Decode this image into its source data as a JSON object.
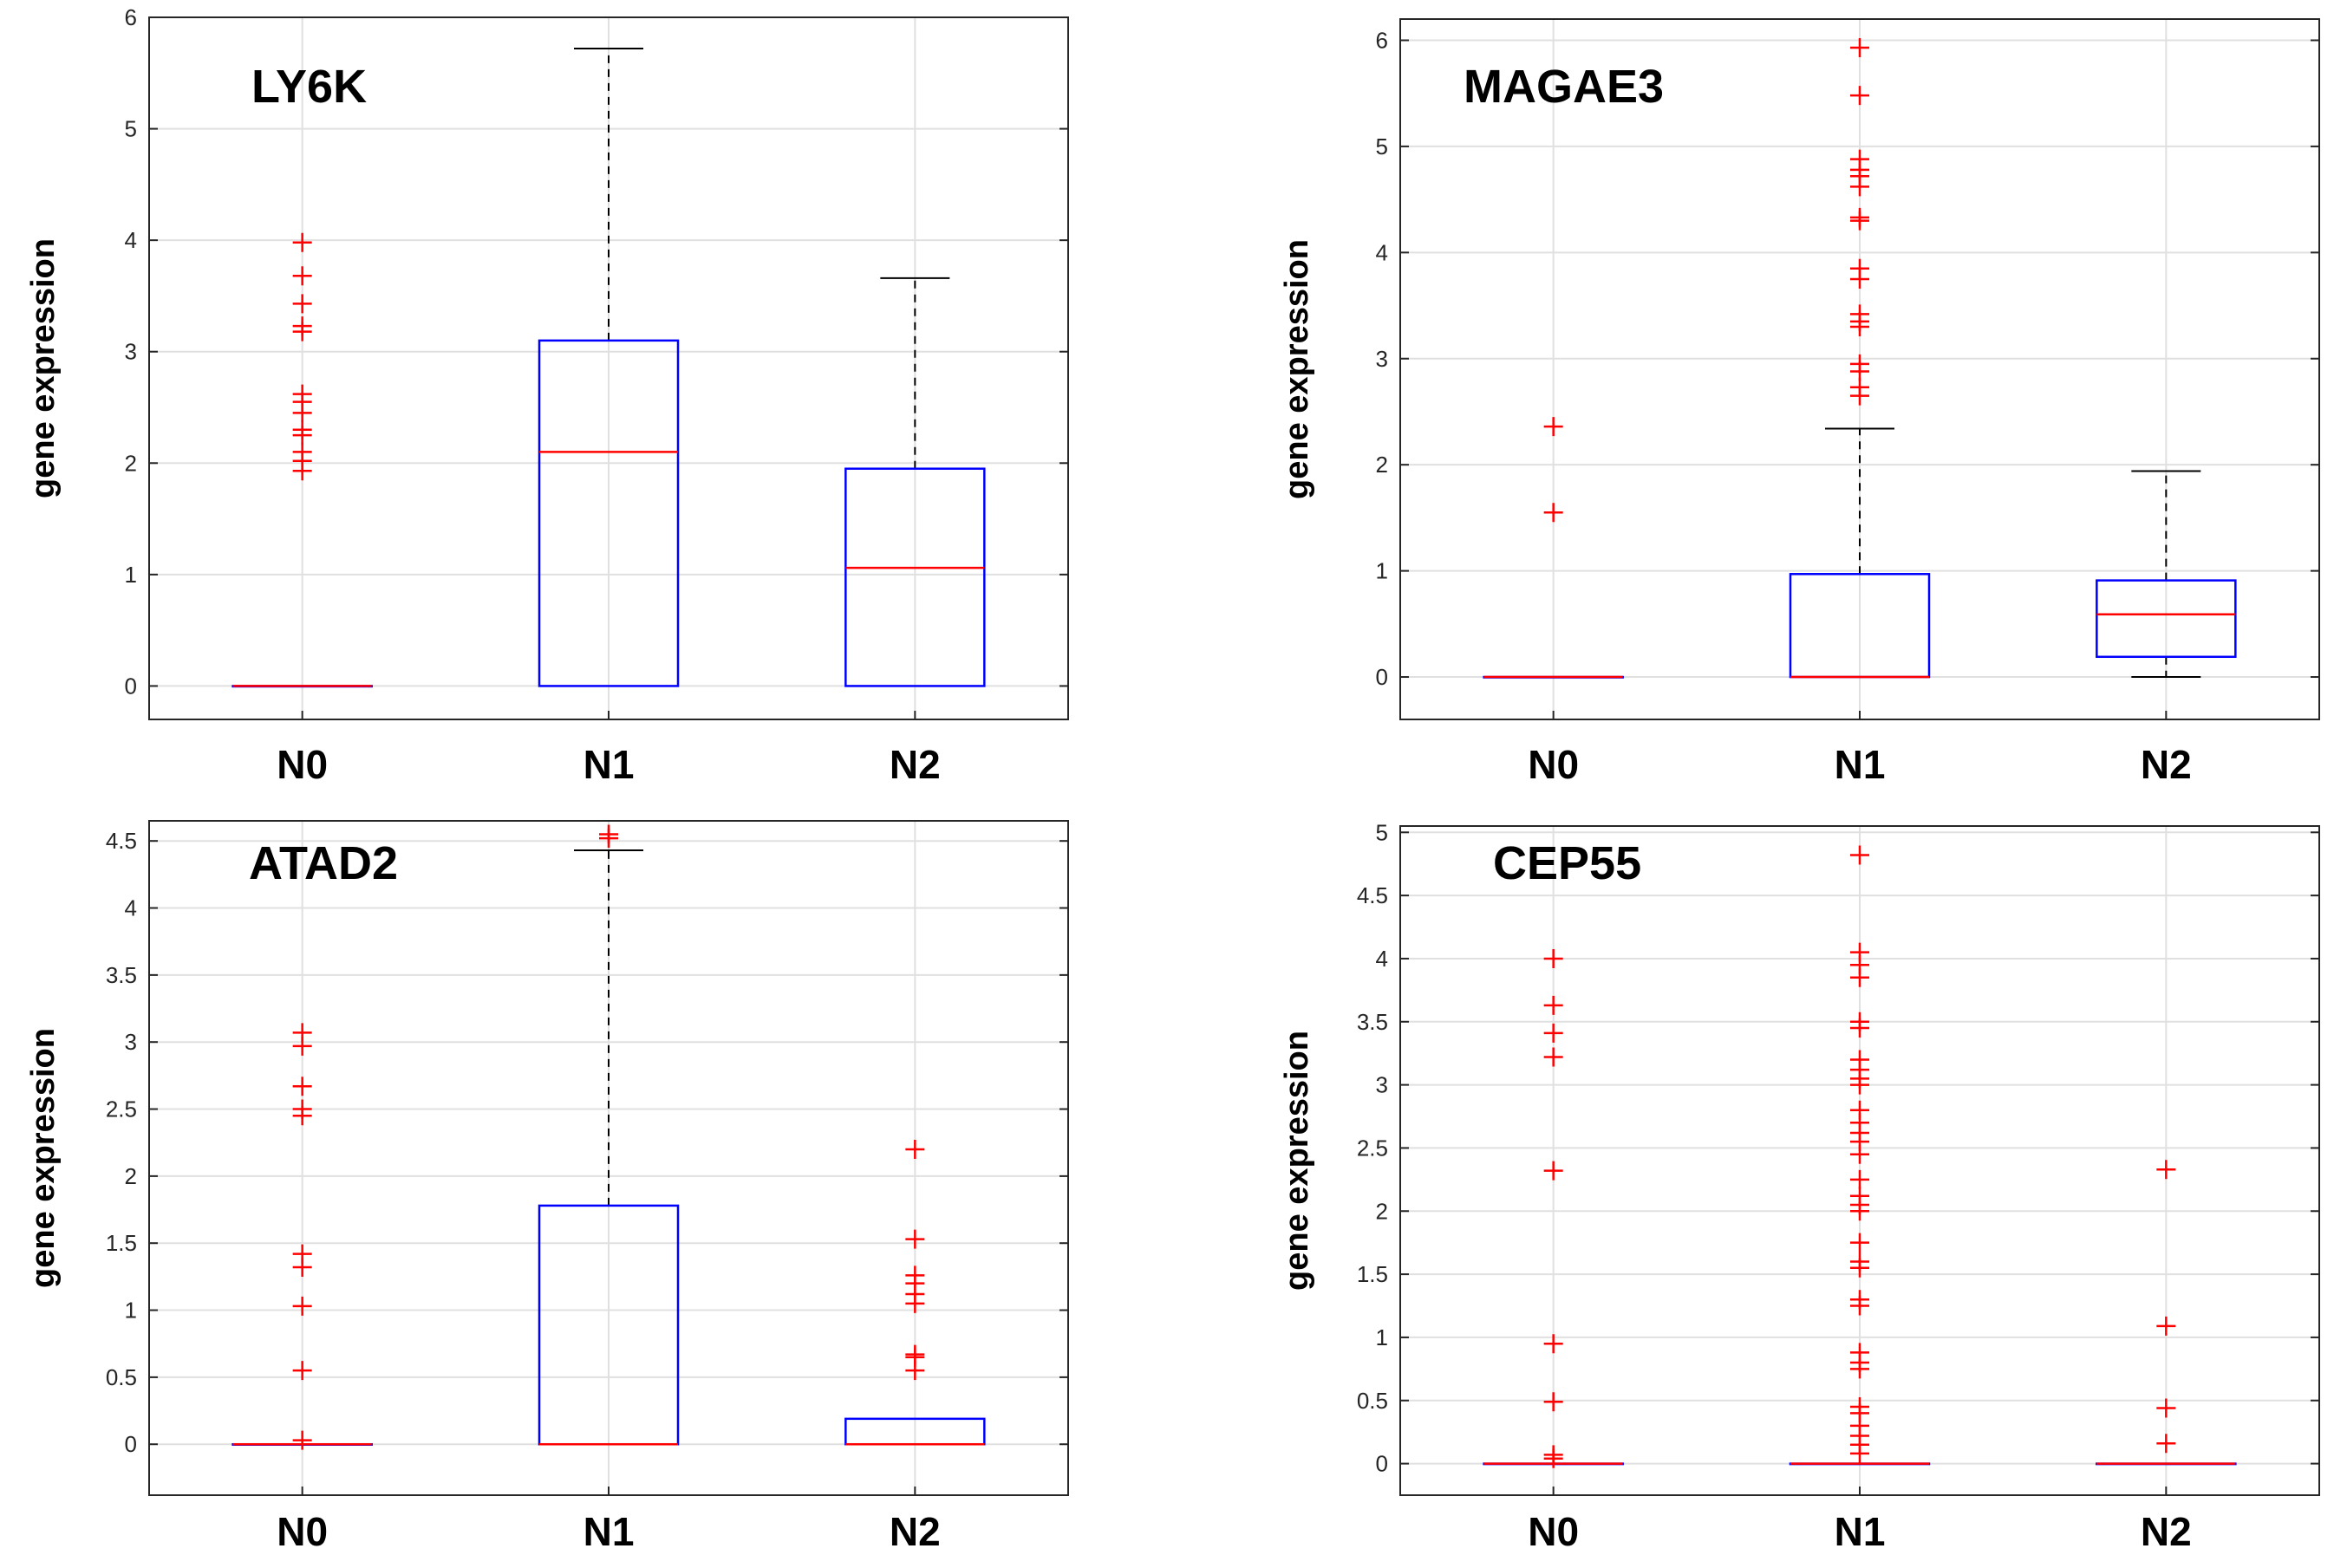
{
  "chart_data": [
    {
      "type": "boxplot",
      "title": "LY6K",
      "ylabel": "gene expression",
      "categories": [
        "N0",
        "N1",
        "N2"
      ],
      "ylim": [
        -0.3,
        6
      ],
      "yticks": [
        0,
        1,
        2,
        3,
        4,
        5,
        6
      ],
      "ytick_labels": [
        "0",
        "1",
        "2",
        "3",
        "4",
        "5",
        "6"
      ],
      "boxes": [
        {
          "category": "N0",
          "q1": 0,
          "median": 0,
          "q3": 0,
          "whisker_low": 0,
          "whisker_high": 0,
          "outliers": [
            1.93,
            2.02,
            2.1,
            2.25,
            2.3,
            2.45,
            2.55,
            2.62,
            3.18,
            3.23,
            3.43,
            3.68,
            3.98
          ]
        },
        {
          "category": "N1",
          "q1": 0,
          "median": 2.1,
          "q3": 3.1,
          "whisker_low": 0,
          "whisker_high": 5.72,
          "outliers": []
        },
        {
          "category": "N2",
          "q1": 0,
          "median": 1.06,
          "q3": 1.95,
          "whisker_low": 0,
          "whisker_high": 3.66,
          "outliers": []
        }
      ]
    },
    {
      "type": "boxplot",
      "title": "MAGAE3",
      "ylabel": "gene expression",
      "categories": [
        "N0",
        "N1",
        "N2"
      ],
      "ylim": [
        -0.4,
        6.2
      ],
      "yticks": [
        0,
        1,
        2,
        3,
        4,
        5,
        6
      ],
      "ytick_labels": [
        "0",
        "1",
        "2",
        "3",
        "4",
        "5",
        "6"
      ],
      "boxes": [
        {
          "category": "N0",
          "q1": 0,
          "median": 0,
          "q3": 0,
          "whisker_low": 0,
          "whisker_high": 0,
          "outliers": [
            1.55,
            2.36
          ]
        },
        {
          "category": "N1",
          "q1": 0,
          "median": 0,
          "q3": 0.97,
          "whisker_low": 0,
          "whisker_high": 2.34,
          "outliers": [
            2.65,
            2.73,
            2.88,
            2.95,
            3.3,
            3.35,
            3.42,
            3.75,
            3.85,
            4.3,
            4.33,
            4.62,
            4.72,
            4.78,
            4.88,
            5.48,
            5.93
          ]
        },
        {
          "category": "N2",
          "q1": 0.19,
          "median": 0.59,
          "q3": 0.91,
          "whisker_low": 0,
          "whisker_high": 1.94,
          "outliers": []
        }
      ]
    },
    {
      "type": "boxplot",
      "title": "ATAD2",
      "ylabel": "gene expression",
      "categories": [
        "N0",
        "N1",
        "N2"
      ],
      "ylim": [
        -0.38,
        4.65
      ],
      "yticks": [
        0,
        0.5,
        1,
        1.5,
        2,
        2.5,
        3,
        3.5,
        4,
        4.5
      ],
      "ytick_labels": [
        "0",
        "0.5",
        "1",
        "1.5",
        "2",
        "2.5",
        "3",
        "3.5",
        "4",
        "4.5"
      ],
      "boxes": [
        {
          "category": "N0",
          "q1": 0,
          "median": 0,
          "q3": 0,
          "whisker_low": 0,
          "whisker_high": 0,
          "outliers": [
            0.03,
            0.55,
            1.03,
            1.32,
            1.42,
            2.45,
            2.5,
            2.67,
            2.97,
            3.07
          ]
        },
        {
          "category": "N1",
          "q1": 0,
          "median": 0,
          "q3": 1.78,
          "whisker_low": 0,
          "whisker_high": 4.43,
          "outliers": [
            4.52,
            4.55
          ]
        },
        {
          "category": "N2",
          "q1": 0,
          "median": 0,
          "q3": 0.19,
          "whisker_low": 0,
          "whisker_high": 0.19,
          "outliers": [
            0.55,
            0.65,
            0.67,
            1.05,
            1.12,
            1.2,
            1.26,
            1.53,
            2.2
          ]
        }
      ]
    },
    {
      "type": "boxplot",
      "title": "CEP55",
      "ylabel": "gene expression",
      "categories": [
        "N0",
        "N1",
        "N2"
      ],
      "ylim": [
        -0.25,
        5.05
      ],
      "yticks": [
        0,
        0.5,
        1,
        1.5,
        2,
        2.5,
        3,
        3.5,
        4,
        4.5,
        5
      ],
      "ytick_labels": [
        "0",
        "0.5",
        "1",
        "1.5",
        "2",
        "2.5",
        "3",
        "3.5",
        "4",
        "4.5",
        "5"
      ],
      "boxes": [
        {
          "category": "N0",
          "q1": 0,
          "median": 0,
          "q3": 0,
          "whisker_low": 0,
          "whisker_high": 0,
          "outliers": [
            0.04,
            0.07,
            0.49,
            0.95,
            2.32,
            3.22,
            3.41,
            3.63,
            4.0
          ]
        },
        {
          "category": "N1",
          "q1": 0,
          "median": 0,
          "q3": 0,
          "whisker_low": 0,
          "whisker_high": 0,
          "outliers": [
            0.08,
            0.15,
            0.22,
            0.3,
            0.4,
            0.45,
            0.75,
            0.8,
            0.88,
            1.25,
            1.3,
            1.55,
            1.6,
            1.75,
            2.0,
            2.05,
            2.12,
            2.25,
            2.45,
            2.55,
            2.62,
            2.7,
            2.8,
            3.0,
            3.05,
            3.12,
            3.2,
            3.45,
            3.5,
            3.85,
            3.95,
            4.05,
            4.82
          ]
        },
        {
          "category": "N2",
          "q1": 0,
          "median": 0,
          "q3": 0,
          "whisker_low": 0,
          "whisker_high": 0,
          "outliers": [
            0.16,
            0.44,
            1.09,
            2.33
          ]
        }
      ]
    }
  ],
  "colors": {
    "box": "#0000ff",
    "median": "#ff0000",
    "outlier": "#ff0000",
    "whisker": "#000000",
    "grid": "#e0e0e0",
    "axis": "#262626"
  }
}
